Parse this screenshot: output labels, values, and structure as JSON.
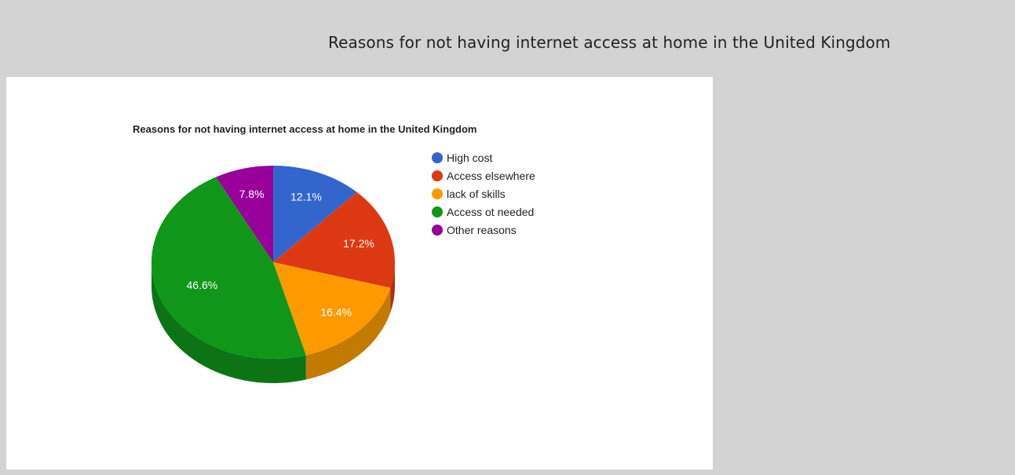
{
  "page": {
    "heading": "Reasons for not having internet access at home in the United Kingdom"
  },
  "chart_data": {
    "type": "pie",
    "style": "3d",
    "title": "Reasons for not having internet access at home in the United Kingdom",
    "categories": [
      "High cost",
      "Access elsewhere",
      "lack of skills",
      "Access ot needed",
      "Other reasons"
    ],
    "values": [
      12.1,
      17.2,
      16.4,
      46.6,
      7.8
    ],
    "labels": [
      "12.1%",
      "17.2%",
      "16.4%",
      "46.6%",
      "7.8%"
    ],
    "colors": [
      "#3366cc",
      "#dc3912",
      "#ff9900",
      "#109618",
      "#990099"
    ],
    "side_colors": [
      "#2a55aa",
      "#b02e0e",
      "#c27a00",
      "#0c7414",
      "#770077"
    ],
    "legend_position": "right"
  }
}
